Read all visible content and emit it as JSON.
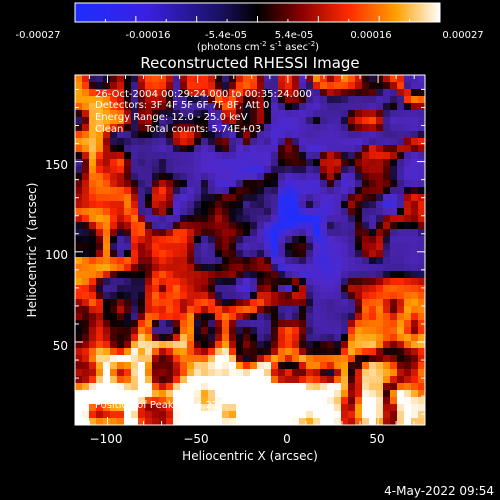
{
  "colorbar": {
    "tick_labels": [
      "-0.00027",
      "-0.00016",
      "-5.4e-05",
      "5.4e-05",
      "0.00016",
      "0.00027"
    ],
    "unit_main": "(photons cm",
    "unit_exp1": "-2",
    "unit_mid": " s",
    "unit_exp2": "-1",
    "unit_tail": " asec",
    "unit_exp3": "-2",
    "unit_close": ")",
    "range": [
      -0.00027,
      0.00027
    ]
  },
  "title": "Reconstructed RHESSI Image",
  "info": {
    "line1": "26-Oct-2004 00:29:24.000 to 00:35:24.000",
    "line2": "Detectors: 3F 4F 5F 6F 7F 8F, Att 0",
    "line3": "Energy Range: 12.0 - 25.0 keV",
    "line4_left": "Clean",
    "line4_right": "Total counts: 5.74E+03"
  },
  "peak_label": "Position of Peak = [-6,22]",
  "footer_date": "4-May-2022 09:54",
  "chart_data": {
    "type": "heatmap",
    "title": "Reconstructed RHESSI Image",
    "xlabel": "Heliocentric X (arcsec)",
    "ylabel": "Heliocentric Y (arcsec)",
    "xlim": [
      -118,
      76
    ],
    "ylim": [
      4,
      198
    ],
    "x_ticks": [
      -100,
      -50,
      0,
      50
    ],
    "y_ticks": [
      50,
      100,
      150
    ],
    "x_tick_labels": [
      "−100",
      "−50",
      "0",
      "50"
    ],
    "y_tick_labels": [
      "50",
      "100",
      "150"
    ],
    "grid": false,
    "colormap": "blue-black-red-yellow-white",
    "peak_position": [
      -6,
      22
    ],
    "value_range": [
      -0.00027,
      0.00027
    ],
    "pixel_size_arcsec": 4
  }
}
